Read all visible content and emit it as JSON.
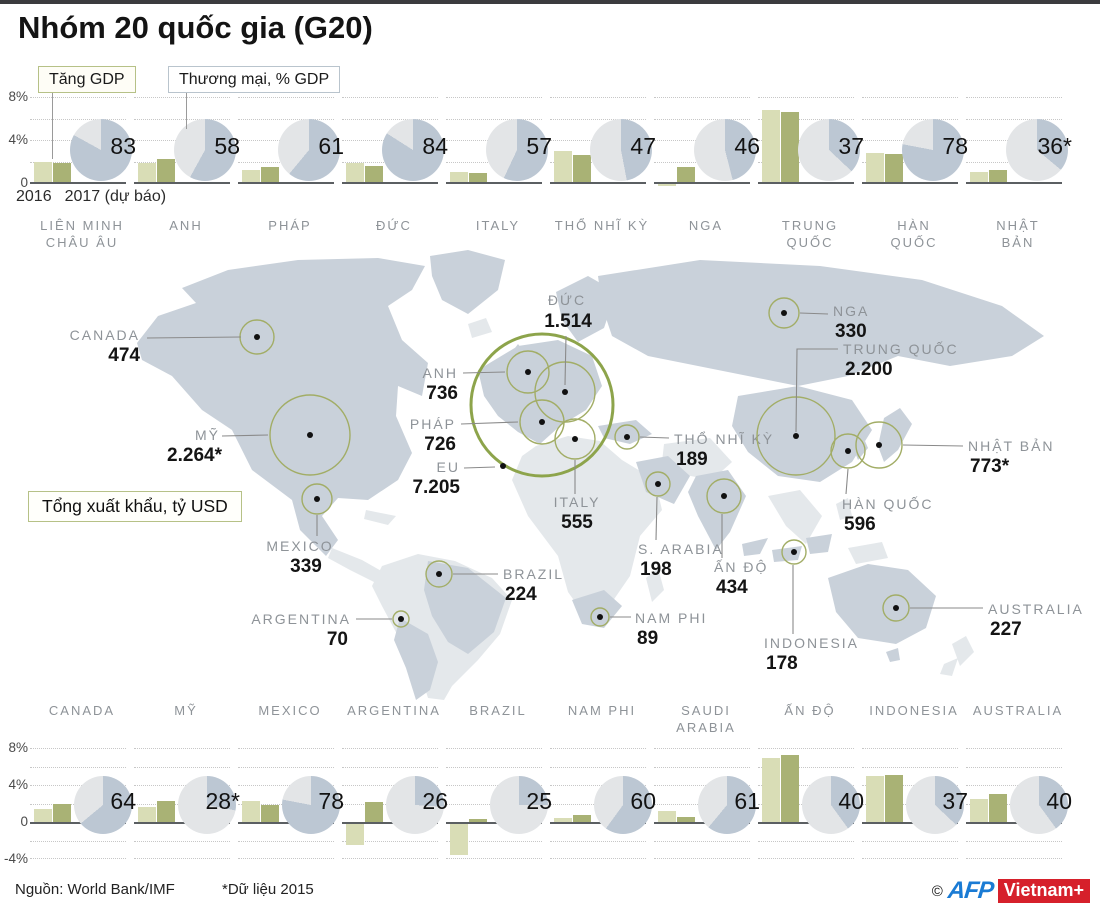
{
  "title": "Nhóm 20 quốc gia (G20)",
  "legend": {
    "gdp_label": "Tăng GDP",
    "trade_label": "Thương mại, % GDP"
  },
  "axes": {
    "top": [
      "8%",
      "4%",
      "0"
    ],
    "bottom": [
      "8%",
      "4%",
      "0",
      "-4%"
    ],
    "x_ticks": [
      "2016",
      "2017 (dự báo)"
    ]
  },
  "rows": {
    "top": [
      {
        "name": [
          "LIÊN MINH",
          "CHÂU ÂU"
        ],
        "gdp": [
          1.9,
          1.8
        ],
        "trade": 83,
        "trade_label": "83"
      },
      {
        "name": [
          "ANH"
        ],
        "gdp": [
          1.8,
          2.1
        ],
        "trade": 58,
        "trade_label": "58"
      },
      {
        "name": [
          "PHÁP"
        ],
        "gdp": [
          1.1,
          1.4
        ],
        "trade": 61,
        "trade_label": "61"
      },
      {
        "name": [
          "ĐỨC"
        ],
        "gdp": [
          1.8,
          1.5
        ],
        "trade": 84,
        "trade_label": "84"
      },
      {
        "name": [
          "ITALY"
        ],
        "gdp": [
          0.9,
          0.8
        ],
        "trade": 57,
        "trade_label": "57"
      },
      {
        "name": [
          "THỔ NHĨ KỲ"
        ],
        "gdp": [
          2.9,
          2.5
        ],
        "trade": 47,
        "trade_label": "47"
      },
      {
        "name": [
          "NGA"
        ],
        "gdp": [
          -0.2,
          1.4
        ],
        "trade": 46,
        "trade_label": "46"
      },
      {
        "name": [
          "TRUNG",
          "QUỐC"
        ],
        "gdp": [
          6.7,
          6.5
        ],
        "trade": 37,
        "trade_label": "37"
      },
      {
        "name": [
          "HÀN",
          "QUỐC"
        ],
        "gdp": [
          2.7,
          2.6
        ],
        "trade": 78,
        "trade_label": "78"
      },
      {
        "name": [
          "NHẬT",
          "BẢN"
        ],
        "gdp": [
          0.9,
          1.1
        ],
        "trade": 36,
        "trade_label": "36*"
      }
    ],
    "bottom": [
      {
        "name": [
          "CANADA"
        ],
        "gdp": [
          1.4,
          2.0
        ],
        "trade": 64,
        "trade_label": "64"
      },
      {
        "name": [
          "MỸ"
        ],
        "gdp": [
          1.6,
          2.3
        ],
        "trade": 28,
        "trade_label": "28*"
      },
      {
        "name": [
          "MEXICO"
        ],
        "gdp": [
          2.3,
          1.8
        ],
        "trade": 78,
        "trade_label": "78"
      },
      {
        "name": [
          "ARGENTINA"
        ],
        "gdp": [
          -2.3,
          2.2
        ],
        "trade": 26,
        "trade_label": "26"
      },
      {
        "name": [
          "BRAZIL"
        ],
        "gdp": [
          -3.4,
          0.3
        ],
        "trade": 25,
        "trade_label": "25"
      },
      {
        "name": [
          "NAM PHI"
        ],
        "gdp": [
          0.4,
          0.8
        ],
        "trade": 60,
        "trade_label": "60"
      },
      {
        "name": [
          "SAUDI",
          "ARABIA"
        ],
        "gdp": [
          1.2,
          0.5
        ],
        "trade": 61,
        "trade_label": "61"
      },
      {
        "name": [
          "ẤN ĐỘ"
        ],
        "gdp": [
          6.9,
          7.2
        ],
        "trade": 40,
        "trade_label": "40"
      },
      {
        "name": [
          "INDONESIA"
        ],
        "gdp": [
          5.0,
          5.1
        ],
        "trade": 37,
        "trade_label": "37"
      },
      {
        "name": [
          "AUSTRALIA"
        ],
        "gdp": [
          2.5,
          3.0
        ],
        "trade": 40,
        "trade_label": "40"
      }
    ]
  },
  "map": {
    "box_label": "Tổng xuất khẩu, tỷ USD",
    "markers": [
      {
        "name": "CANADA",
        "value": "474"
      },
      {
        "name": "MỸ",
        "value": "2.264*"
      },
      {
        "name": "EU",
        "value": "7.205"
      },
      {
        "name": "ANH",
        "value": "736"
      },
      {
        "name": "PHÁP",
        "value": "726"
      },
      {
        "name": "ĐỨC",
        "value": "1.514"
      },
      {
        "name": "ITALY",
        "value": "555"
      },
      {
        "name": "THỔ NHĨ KỲ",
        "value": "189"
      },
      {
        "name": "NGA",
        "value": "330"
      },
      {
        "name": "TRUNG QUỐC",
        "value": "2.200"
      },
      {
        "name": "NHẬT BẢN",
        "value": "773*"
      },
      {
        "name": "HÀN QUỐC",
        "value": "596"
      },
      {
        "name": "S. ARABIA",
        "value": "198"
      },
      {
        "name": "ẤN ĐỘ",
        "value": "434"
      },
      {
        "name": "INDONESIA",
        "value": "178"
      },
      {
        "name": "AUSTRALIA",
        "value": "227"
      },
      {
        "name": "MEXICO",
        "value": "339"
      },
      {
        "name": "BRAZIL",
        "value": "224"
      },
      {
        "name": "ARGENTINA",
        "value": "70"
      },
      {
        "name": "NAM PHI",
        "value": "89"
      }
    ]
  },
  "footer": {
    "source": "Nguồn: World Bank/IMF",
    "note": "*Dữ liệu 2015",
    "copyright": "©",
    "logo_afp": "AFP",
    "logo_vn": "Vietnam+"
  },
  "colors": {
    "bar_2016": "#d9ddb6",
    "bar_2017": "#a9b275",
    "pie_dark": "#bcc7d3",
    "pie_light": "#e3e5e7",
    "land_dark": "#c9d1da",
    "land_light": "#e4e8eb",
    "bubble_stroke": "#a2ad66",
    "logo_red": "#d6202b",
    "logo_blue": "#1a7bd4"
  },
  "chart_data": [
    {
      "type": "bar",
      "title": "Tăng GDP",
      "ylabel": "%",
      "ylim": [
        -4,
        8
      ],
      "grid": true,
      "categories": [
        "Liên minh châu Âu",
        "Anh",
        "Pháp",
        "Đức",
        "Italy",
        "Thổ Nhĩ Kỳ",
        "Nga",
        "Trung Quốc",
        "Hàn Quốc",
        "Nhật Bản",
        "Canada",
        "Mỹ",
        "Mexico",
        "Argentina",
        "Brazil",
        "Nam Phi",
        "Saudi Arabia",
        "Ấn Độ",
        "Indonesia",
        "Australia"
      ],
      "series": [
        {
          "name": "2016",
          "values": [
            1.9,
            1.8,
            1.1,
            1.8,
            0.9,
            2.9,
            -0.2,
            6.7,
            2.7,
            0.9,
            1.4,
            1.6,
            2.3,
            -2.3,
            -3.4,
            0.4,
            1.2,
            6.9,
            5.0,
            2.5
          ]
        },
        {
          "name": "2017 (dự báo)",
          "values": [
            1.8,
            2.1,
            1.4,
            1.5,
            0.8,
            2.5,
            1.4,
            6.5,
            2.6,
            1.1,
            2.0,
            2.3,
            1.8,
            2.2,
            0.3,
            0.8,
            0.5,
            7.2,
            5.1,
            3.0
          ]
        }
      ]
    },
    {
      "type": "pie",
      "title": "Thương mại, % GDP",
      "categories": [
        "Liên minh châu Âu",
        "Anh",
        "Pháp",
        "Đức",
        "Italy",
        "Thổ Nhĩ Kỳ",
        "Nga",
        "Trung Quốc",
        "Hàn Quốc",
        "Nhật Bản",
        "Canada",
        "Mỹ",
        "Mexico",
        "Argentina",
        "Brazil",
        "Nam Phi",
        "Saudi Arabia",
        "Ấn Độ",
        "Indonesia",
        "Australia"
      ],
      "values": [
        83,
        58,
        61,
        84,
        57,
        47,
        46,
        37,
        78,
        36,
        64,
        28,
        78,
        26,
        25,
        60,
        61,
        40,
        37,
        40
      ],
      "notes": {
        "Nhật Bản": "36*",
        "Mỹ": "28*"
      }
    },
    {
      "type": "bubble-map",
      "title": "Tổng xuất khẩu, tỷ USD",
      "points": [
        {
          "name": "EU",
          "value": 7205,
          "label": "7.205"
        },
        {
          "name": "MỸ",
          "value": 2264,
          "label": "2.264*"
        },
        {
          "name": "TRUNG QUỐC",
          "value": 2200,
          "label": "2.200"
        },
        {
          "name": "ĐỨC",
          "value": 1514,
          "label": "1.514"
        },
        {
          "name": "NHẬT BẢN",
          "value": 773,
          "label": "773*"
        },
        {
          "name": "ANH",
          "value": 736,
          "label": "736"
        },
        {
          "name": "PHÁP",
          "value": 726,
          "label": "726"
        },
        {
          "name": "HÀN QUỐC",
          "value": 596,
          "label": "596"
        },
        {
          "name": "ITALY",
          "value": 555,
          "label": "555"
        },
        {
          "name": "CANADA",
          "value": 474,
          "label": "474"
        },
        {
          "name": "ẤN ĐỘ",
          "value": 434,
          "label": "434"
        },
        {
          "name": "MEXICO",
          "value": 339,
          "label": "339"
        },
        {
          "name": "NGA",
          "value": 330,
          "label": "330"
        },
        {
          "name": "AUSTRALIA",
          "value": 227,
          "label": "227"
        },
        {
          "name": "BRAZIL",
          "value": 224,
          "label": "224"
        },
        {
          "name": "S. ARABIA",
          "value": 198,
          "label": "198"
        },
        {
          "name": "THỔ NHĨ KỲ",
          "value": 189,
          "label": "189"
        },
        {
          "name": "INDONESIA",
          "value": 178,
          "label": "178"
        },
        {
          "name": "NAM PHI",
          "value": 89,
          "label": "89"
        },
        {
          "name": "ARGENTINA",
          "value": 70,
          "label": "70"
        }
      ]
    }
  ]
}
